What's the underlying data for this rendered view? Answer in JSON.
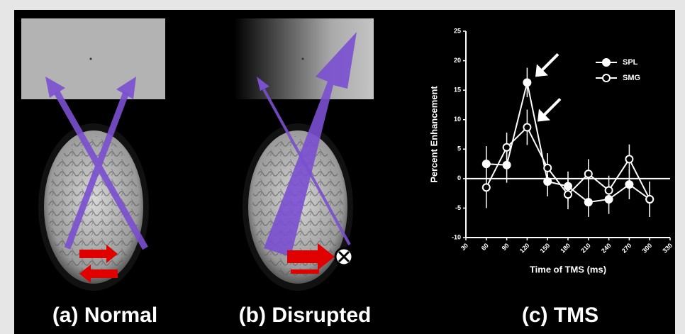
{
  "panel_labels": [
    "(a) Normal",
    "(b) Disrupted",
    "(c) TMS"
  ],
  "chart_data": {
    "type": "line",
    "xlabel": "Time of TMS (ms)",
    "ylabel": "Percent Enhancement",
    "x": [
      60,
      90,
      120,
      150,
      180,
      210,
      240,
      270,
      300
    ],
    "series": [
      {
        "name": "SPL",
        "color": "#ffffff",
        "filled": true,
        "values": [
          2.5,
          2.3,
          16.3,
          -0.5,
          -1.3,
          -4,
          -3.5,
          -1,
          -3.5
        ],
        "errors": [
          3,
          3,
          2.5,
          2.5,
          2.5,
          2.5,
          2.5,
          2.5,
          3
        ]
      },
      {
        "name": "SMG",
        "color": "#ffffff",
        "filled": false,
        "values": [
          -1.5,
          5.3,
          8.7,
          1.8,
          -2.7,
          0.8,
          -2,
          3.3,
          -3.5
        ],
        "errors": [
          3.5,
          2.5,
          3,
          2.5,
          2.5,
          2.5,
          2.5,
          2.5,
          3
        ]
      }
    ],
    "xlim": [
      30,
      330
    ],
    "xticks": [
      30,
      60,
      90,
      120,
      150,
      180,
      210,
      240,
      270,
      300,
      330
    ],
    "ylim": [
      -10,
      25
    ],
    "yticks": [
      -10,
      -5,
      0,
      5,
      10,
      15,
      20,
      25
    ],
    "legend": "upper right"
  }
}
